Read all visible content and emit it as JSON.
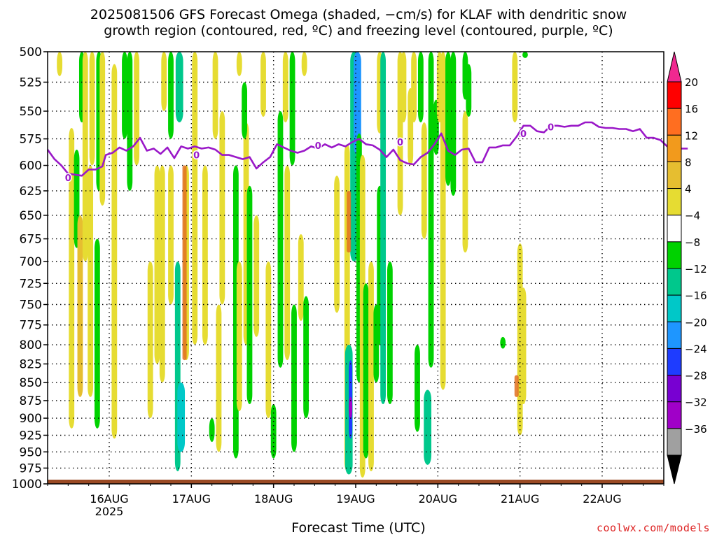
{
  "title": {
    "line1": "2025081506 GFS Forecast Omega (shaded, −cm/s) for KLAF with dendritic snow",
    "line2": "growth region (contoured, red, ºC) and freezing level (contoured, purple, ºC)"
  },
  "credit": "coolwx.com/models",
  "chart_data": {
    "type": "heatmap",
    "xlabel": "Forecast Time (UTC)",
    "ylabel": "",
    "x_ticks": [
      {
        "label": "16AUG",
        "sub": "2025",
        "hour": 18
      },
      {
        "label": "17AUG",
        "sub": "",
        "hour": 42
      },
      {
        "label": "18AUG",
        "sub": "",
        "hour": 66
      },
      {
        "label": "19AUG",
        "sub": "",
        "hour": 90
      },
      {
        "label": "20AUG",
        "sub": "",
        "hour": 114
      },
      {
        "label": "21AUG",
        "sub": "",
        "hour": 138
      },
      {
        "label": "22AUG",
        "sub": "",
        "hour": 162
      }
    ],
    "xlim_hours": [
      0,
      180
    ],
    "y_ticks": [
      500,
      525,
      550,
      575,
      600,
      625,
      650,
      675,
      700,
      725,
      750,
      775,
      800,
      825,
      850,
      875,
      900,
      925,
      950,
      975,
      1000
    ],
    "ylim": [
      1000,
      500
    ],
    "y_scale": "log",
    "grid": "dotted",
    "colorbar": {
      "levels": [
        -36,
        -32,
        -28,
        -24,
        -20,
        -16,
        -12,
        -8,
        -4,
        4,
        8,
        12,
        16,
        20
      ],
      "labels": [
        "20",
        "16",
        "12",
        "8",
        "4",
        "−4",
        "−8",
        "−12",
        "−16",
        "−20",
        "−24",
        "−28",
        "−32",
        "−36"
      ],
      "colors": [
        "#ff0000",
        "#ff6e20",
        "#f29a1c",
        "#e6be30",
        "#e6dc32",
        "#ffffff",
        "#00d200",
        "#00c88c",
        "#00c8c8",
        "#1e96ff",
        "#1e3cff",
        "#7800d2",
        "#a000c8",
        "#a0a0a0"
      ],
      "top_arrow_color": "#f02890",
      "bottom_arrow_color": "#000000"
    },
    "freezing_level": {
      "label": "0",
      "color": "#9a18c8",
      "points": [
        [
          0,
          585
        ],
        [
          2,
          594
        ],
        [
          4,
          600
        ],
        [
          6,
          608
        ],
        [
          8,
          609
        ],
        [
          10,
          610
        ],
        [
          12,
          604
        ],
        [
          14,
          604
        ],
        [
          16,
          601
        ],
        [
          17,
          590
        ],
        [
          19,
          588
        ],
        [
          21,
          583
        ],
        [
          23,
          586
        ],
        [
          25,
          582
        ],
        [
          27,
          574
        ],
        [
          29,
          586
        ],
        [
          31,
          584
        ],
        [
          33,
          589
        ],
        [
          35,
          583
        ],
        [
          37,
          593
        ],
        [
          39,
          582
        ],
        [
          41,
          584
        ],
        [
          43,
          582
        ],
        [
          45,
          584
        ],
        [
          47,
          583
        ],
        [
          49,
          585
        ],
        [
          51,
          590
        ],
        [
          53,
          590
        ],
        [
          55,
          592
        ],
        [
          57,
          594
        ],
        [
          59,
          592
        ],
        [
          61,
          603
        ],
        [
          63,
          597
        ],
        [
          65,
          592
        ],
        [
          67,
          580
        ],
        [
          69,
          583
        ],
        [
          71,
          586
        ],
        [
          73,
          588
        ],
        [
          75,
          586
        ],
        [
          77,
          582
        ],
        [
          79,
          584
        ],
        [
          81,
          580
        ],
        [
          83,
          583
        ],
        [
          85,
          580
        ],
        [
          87,
          582
        ],
        [
          89,
          578
        ],
        [
          91,
          575
        ],
        [
          93,
          580
        ],
        [
          95,
          581
        ],
        [
          97,
          585
        ],
        [
          99,
          592
        ],
        [
          101,
          585
        ],
        [
          103,
          595
        ],
        [
          105,
          598
        ],
        [
          107,
          599
        ],
        [
          109,
          592
        ],
        [
          111,
          588
        ],
        [
          113,
          580
        ],
        [
          115,
          570
        ],
        [
          117,
          586
        ],
        [
          119,
          590
        ],
        [
          121,
          585
        ],
        [
          123,
          584
        ],
        [
          125,
          597
        ],
        [
          127,
          597
        ],
        [
          129,
          583
        ],
        [
          131,
          583
        ],
        [
          133,
          581
        ],
        [
          135,
          581
        ],
        [
          137,
          573
        ],
        [
          139,
          563
        ],
        [
          141,
          563
        ],
        [
          143,
          568
        ],
        [
          145,
          569
        ],
        [
          147,
          563
        ],
        [
          149,
          563
        ],
        [
          151,
          564
        ],
        [
          153,
          563
        ],
        [
          155,
          563
        ],
        [
          157,
          560
        ],
        [
          159,
          560
        ],
        [
          161,
          564
        ],
        [
          163,
          565
        ],
        [
          165,
          565
        ],
        [
          167,
          566
        ],
        [
          169,
          566
        ],
        [
          171,
          568
        ],
        [
          173,
          566
        ],
        [
          175,
          574
        ],
        [
          177,
          574
        ],
        [
          179,
          576
        ],
        [
          181,
          582
        ],
        [
          183,
          584
        ],
        [
          185,
          584
        ],
        [
          187,
          584
        ]
      ]
    },
    "dendritic_zone": [
      {
        "hour": 40,
        "p_top": 600,
        "p_bottom": 820,
        "color": "#e07020"
      },
      {
        "hour": 88,
        "p_top": 625,
        "p_bottom": 690,
        "color": "#e07020"
      },
      {
        "hour": 137,
        "p_top": 840,
        "p_bottom": 870,
        "color": "#e07020"
      }
    ],
    "omega_features": [
      {
        "hour": 3.5,
        "p_top": 500,
        "p_bottom": 520,
        "value": 6
      },
      {
        "hour": 7,
        "p_top": 565,
        "p_bottom": 915,
        "value": 5
      },
      {
        "hour": 8.5,
        "p_top": 585,
        "p_bottom": 685,
        "value": -6
      },
      {
        "hour": 9.5,
        "p_top": 650,
        "p_bottom": 870,
        "value": 9
      },
      {
        "hour": 10,
        "p_top": 500,
        "p_bottom": 560,
        "value": -6
      },
      {
        "hour": 11,
        "p_top": 500,
        "p_bottom": 700,
        "value": 6
      },
      {
        "hour": 12.5,
        "p_top": 600,
        "p_bottom": 870,
        "value": 6
      },
      {
        "hour": 13,
        "p_top": 500,
        "p_bottom": 600,
        "value": 5
      },
      {
        "hour": 14.5,
        "p_top": 675,
        "p_bottom": 915,
        "value": -6
      },
      {
        "hour": 15,
        "p_top": 500,
        "p_bottom": 625,
        "value": -6
      },
      {
        "hour": 16,
        "p_top": 500,
        "p_bottom": 640,
        "value": 5
      },
      {
        "hour": 19.5,
        "p_top": 510,
        "p_bottom": 930,
        "value": 5
      },
      {
        "hour": 22.5,
        "p_top": 500,
        "p_bottom": 575,
        "value": -6
      },
      {
        "hour": 24,
        "p_top": 500,
        "p_bottom": 625,
        "value": -7
      },
      {
        "hour": 26,
        "p_top": 500,
        "p_bottom": 600,
        "value": 5
      },
      {
        "hour": 30,
        "p_top": 700,
        "p_bottom": 900,
        "value": 6
      },
      {
        "hour": 32,
        "p_top": 600,
        "p_bottom": 825,
        "value": 5
      },
      {
        "hour": 33.5,
        "p_top": 600,
        "p_bottom": 850,
        "value": 5
      },
      {
        "hour": 34,
        "p_top": 500,
        "p_bottom": 550,
        "value": 5
      },
      {
        "hour": 36,
        "p_top": 600,
        "p_bottom": 750,
        "value": 5
      },
      {
        "hour": 36,
        "p_top": 500,
        "p_bottom": 575,
        "value": -5
      },
      {
        "hour": 38,
        "p_top": 700,
        "p_bottom": 980,
        "value": -8
      },
      {
        "hour": 39,
        "p_top": 850,
        "p_bottom": 950,
        "value": -15
      },
      {
        "hour": 38.5,
        "p_top": 500,
        "p_bottom": 560,
        "value": -10
      },
      {
        "hour": 40.5,
        "p_top": 600,
        "p_bottom": 820,
        "value": 7
      },
      {
        "hour": 43,
        "p_top": 500,
        "p_bottom": 800,
        "value": 5
      },
      {
        "hour": 46,
        "p_top": 600,
        "p_bottom": 800,
        "value": 5
      },
      {
        "hour": 48,
        "p_top": 900,
        "p_bottom": 935,
        "value": -6
      },
      {
        "hour": 49,
        "p_top": 500,
        "p_bottom": 575,
        "value": 5
      },
      {
        "hour": 50,
        "p_top": 750,
        "p_bottom": 950,
        "value": 5
      },
      {
        "hour": 51,
        "p_top": 550,
        "p_bottom": 750,
        "value": 5
      },
      {
        "hour": 55,
        "p_top": 600,
        "p_bottom": 960,
        "value": -7
      },
      {
        "hour": 56,
        "p_top": 700,
        "p_bottom": 890,
        "value": 5
      },
      {
        "hour": 56,
        "p_top": 500,
        "p_bottom": 520,
        "value": 5
      },
      {
        "hour": 58,
        "p_top": 560,
        "p_bottom": 800,
        "value": 5
      },
      {
        "hour": 57.5,
        "p_top": 525,
        "p_bottom": 575,
        "value": -6
      },
      {
        "hour": 59,
        "p_top": 620,
        "p_bottom": 880,
        "value": -6
      },
      {
        "hour": 61,
        "p_top": 650,
        "p_bottom": 790,
        "value": 6
      },
      {
        "hour": 63,
        "p_top": 500,
        "p_bottom": 555,
        "value": 5
      },
      {
        "hour": 64.5,
        "p_top": 700,
        "p_bottom": 900,
        "value": 5
      },
      {
        "hour": 66,
        "p_top": 880,
        "p_bottom": 960,
        "value": -7
      },
      {
        "hour": 68,
        "p_top": 550,
        "p_bottom": 830,
        "value": -7
      },
      {
        "hour": 69.5,
        "p_top": 500,
        "p_bottom": 560,
        "value": 5
      },
      {
        "hour": 70,
        "p_top": 600,
        "p_bottom": 820,
        "value": 6
      },
      {
        "hour": 71.5,
        "p_top": 500,
        "p_bottom": 600,
        "value": -6
      },
      {
        "hour": 72,
        "p_top": 750,
        "p_bottom": 950,
        "value": -6
      },
      {
        "hour": 74,
        "p_top": 670,
        "p_bottom": 770,
        "value": 5
      },
      {
        "hour": 75,
        "p_top": 500,
        "p_bottom": 520,
        "value": 5
      },
      {
        "hour": 75.5,
        "p_top": 740,
        "p_bottom": 900,
        "value": -7
      },
      {
        "hour": 84.5,
        "p_top": 610,
        "p_bottom": 760,
        "value": 5
      },
      {
        "hour": 87.5,
        "p_top": 580,
        "p_bottom": 980,
        "value": 6
      },
      {
        "hour": 88,
        "p_top": 800,
        "p_bottom": 985,
        "value": -10
      },
      {
        "hour": 88.5,
        "p_top": 820,
        "p_bottom": 930,
        "value": -22
      },
      {
        "hour": 88.5,
        "p_top": 870,
        "p_bottom": 900,
        "value": -30
      },
      {
        "hour": 89.5,
        "p_top": 500,
        "p_bottom": 700,
        "value": -10
      },
      {
        "hour": 90.5,
        "p_top": 500,
        "p_bottom": 590,
        "value": -16
      },
      {
        "hour": 91,
        "p_top": 570,
        "p_bottom": 850,
        "value": -7
      },
      {
        "hour": 92,
        "p_top": 590,
        "p_bottom": 990,
        "value": 5
      },
      {
        "hour": 93,
        "p_top": 725,
        "p_bottom": 960,
        "value": -7
      },
      {
        "hour": 94.5,
        "p_top": 700,
        "p_bottom": 980,
        "value": 5
      },
      {
        "hour": 96,
        "p_top": 750,
        "p_bottom": 850,
        "value": -7
      },
      {
        "hour": 97,
        "p_top": 500,
        "p_bottom": 570,
        "value": 5
      },
      {
        "hour": 97,
        "p_top": 620,
        "p_bottom": 800,
        "value": -6
      },
      {
        "hour": 98,
        "p_top": 500,
        "p_bottom": 880,
        "value": -8
      },
      {
        "hour": 100,
        "p_top": 700,
        "p_bottom": 880,
        "value": -6
      },
      {
        "hour": 103,
        "p_top": 500,
        "p_bottom": 650,
        "value": 5
      },
      {
        "hour": 104,
        "p_top": 500,
        "p_bottom": 560,
        "value": 5
      },
      {
        "hour": 106,
        "p_top": 530,
        "p_bottom": 600,
        "value": 5
      },
      {
        "hour": 107,
        "p_top": 500,
        "p_bottom": 560,
        "value": 5
      },
      {
        "hour": 108,
        "p_top": 800,
        "p_bottom": 920,
        "value": -7
      },
      {
        "hour": 109,
        "p_top": 500,
        "p_bottom": 560,
        "value": -6
      },
      {
        "hour": 110,
        "p_top": 560,
        "p_bottom": 675,
        "value": 5
      },
      {
        "hour": 111,
        "p_top": 860,
        "p_bottom": 970,
        "value": -10
      },
      {
        "hour": 112,
        "p_top": 500,
        "p_bottom": 830,
        "value": -6
      },
      {
        "hour": 113.5,
        "p_top": 540,
        "p_bottom": 590,
        "value": -6
      },
      {
        "hour": 114.5,
        "p_top": 500,
        "p_bottom": 560,
        "value": 5
      },
      {
        "hour": 115.5,
        "p_top": 500,
        "p_bottom": 860,
        "value": 5
      },
      {
        "hour": 117,
        "p_top": 500,
        "p_bottom": 620,
        "value": -7
      },
      {
        "hour": 118.5,
        "p_top": 500,
        "p_bottom": 630,
        "value": -6
      },
      {
        "hour": 122,
        "p_top": 500,
        "p_bottom": 540,
        "value": -6
      },
      {
        "hour": 122,
        "p_top": 550,
        "p_bottom": 690,
        "value": 5
      },
      {
        "hour": 123,
        "p_top": 510,
        "p_bottom": 555,
        "value": -7
      },
      {
        "hour": 136.5,
        "p_top": 500,
        "p_bottom": 560,
        "value": 5
      },
      {
        "hour": 138,
        "p_top": 680,
        "p_bottom": 925,
        "value": 5
      },
      {
        "hour": 139,
        "p_top": 730,
        "p_bottom": 880,
        "value": 5
      },
      {
        "hour": 133,
        "p_top": 790,
        "p_bottom": 805,
        "value": -6
      },
      {
        "hour": 139.5,
        "p_top": 500,
        "p_bottom": 505,
        "value": -6
      }
    ]
  }
}
